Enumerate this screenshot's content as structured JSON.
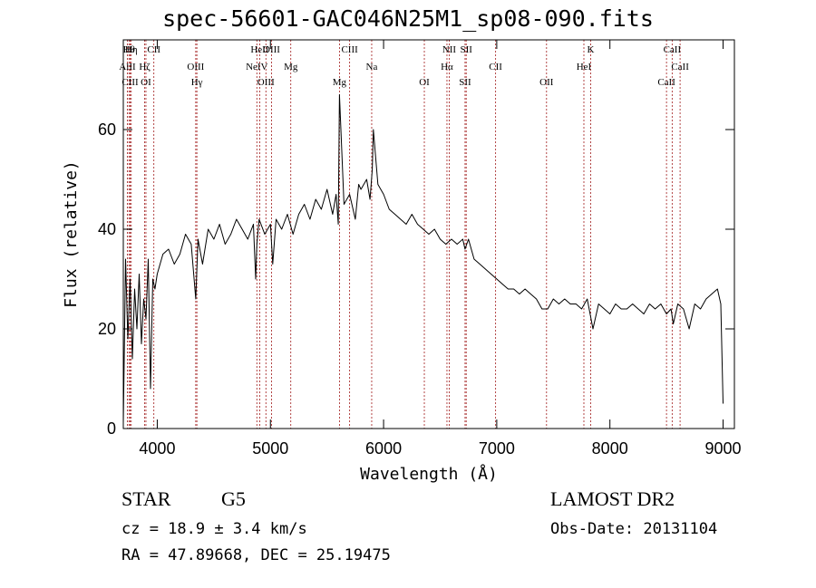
{
  "header": {
    "title": "spec-56601-GAC046N25M1_sp08-090.fits"
  },
  "footer": {
    "object_class": "STAR",
    "subclass": "G5",
    "survey": "LAMOST DR2",
    "redshift": "cz = 18.9 ± 3.4 km/s",
    "obs_date": "Obs-Date: 20131104",
    "coords": "RA =  47.89668, DEC =  25.19475"
  },
  "colors": {
    "spectrum": "#000000",
    "line_markers": "#a01818",
    "axes": "#000000"
  },
  "chart_data": {
    "type": "line",
    "title": "spec-56601-GAC046N25M1_sp08-090.fits",
    "xlabel": "Wavelength (Å)",
    "ylabel": "Flux (relative)",
    "xlim": [
      3700,
      9100
    ],
    "ylim": [
      0,
      78
    ],
    "x_ticks": [
      4000,
      5000,
      6000,
      7000,
      8000,
      9000
    ],
    "y_ticks": [
      0,
      20,
      40,
      60
    ],
    "grid": false,
    "legend": "none",
    "series": [
      {
        "x": [
          3700,
          3720,
          3740,
          3760,
          3780,
          3800,
          3820,
          3840,
          3860,
          3880,
          3900,
          3920,
          3940,
          3960,
          3980,
          4000,
          4050,
          4100,
          4150,
          4200,
          4250,
          4300,
          4340,
          4360,
          4400,
          4450,
          4500,
          4550,
          4600,
          4650,
          4700,
          4750,
          4800,
          4850,
          4870,
          4880,
          4900,
          4950,
          5000,
          5020,
          5050,
          5100,
          5150,
          5200,
          5250,
          5300,
          5350,
          5400,
          5450,
          5500,
          5550,
          5580,
          5600,
          5610,
          5650,
          5700,
          5750,
          5780,
          5800,
          5850,
          5880,
          5900,
          5910,
          5950,
          6000,
          6050,
          6100,
          6150,
          6200,
          6250,
          6300,
          6350,
          6400,
          6450,
          6500,
          6550,
          6600,
          6650,
          6700,
          6720,
          6750,
          6800,
          6850,
          6900,
          6950,
          7000,
          7050,
          7100,
          7150,
          7200,
          7250,
          7300,
          7350,
          7400,
          7450,
          7500,
          7550,
          7600,
          7650,
          7700,
          7750,
          7800,
          7850,
          7900,
          7950,
          8000,
          8050,
          8100,
          8150,
          8200,
          8250,
          8300,
          8350,
          8400,
          8450,
          8500,
          8540,
          8560,
          8600,
          8650,
          8700,
          8750,
          8800,
          8850,
          8900,
          8950,
          8980,
          9000
        ],
        "y": [
          1,
          34,
          18,
          30,
          14,
          28,
          20,
          31,
          17,
          26,
          22,
          34,
          8,
          30,
          28,
          31,
          35,
          36,
          33,
          35,
          39,
          37,
          26,
          38,
          33,
          40,
          38,
          41,
          37,
          39,
          42,
          40,
          38,
          41,
          30,
          37,
          42,
          39,
          41,
          33,
          42,
          40,
          43,
          39,
          43,
          45,
          42,
          46,
          44,
          48,
          43,
          47,
          41,
          67,
          45,
          47,
          42,
          49,
          48,
          50,
          46,
          52,
          60,
          49,
          47,
          44,
          43,
          42,
          41,
          43,
          41,
          40,
          39,
          40,
          38,
          37,
          38,
          37,
          38,
          36,
          38,
          34,
          33,
          32,
          31,
          30,
          29,
          28,
          28,
          27,
          28,
          27,
          26,
          24,
          24,
          26,
          25,
          26,
          25,
          25,
          24,
          26,
          20,
          25,
          24,
          23,
          25,
          24,
          24,
          25,
          24,
          23,
          25,
          24,
          25,
          23,
          24,
          21,
          25,
          24,
          20,
          25,
          24,
          26,
          27,
          28,
          25,
          5
        ]
      }
    ],
    "line_markers": [
      {
        "label": "Hθ",
        "wavelength": 3750
      },
      {
        "label": "AlII",
        "wavelength": 3736
      },
      {
        "label": "CIII",
        "wavelength": 3760
      },
      {
        "label": "Hη",
        "wavelength": 3770
      },
      {
        "label": "Hζ",
        "wavelength": 3889
      },
      {
        "label": "OI",
        "wavelength": 3900
      },
      {
        "label": "CII",
        "wavelength": 3970
      },
      {
        "label": "OIII",
        "wavelength": 4340
      },
      {
        "label": "Hγ",
        "wavelength": 4350
      },
      {
        "label": "HeII",
        "wavelength": 4905
      },
      {
        "label": "NeIV",
        "wavelength": 4880
      },
      {
        "label": "OIII",
        "wavelength": 4960
      },
      {
        "label": "OIII",
        "wavelength": 5010
      },
      {
        "label": "Mg",
        "wavelength": 5180
      },
      {
        "label": "Mg",
        "wavelength": 5610
      },
      {
        "label": "CIII",
        "wavelength": 5700
      },
      {
        "label": "Na",
        "wavelength": 5895
      },
      {
        "label": "OI",
        "wavelength": 6360
      },
      {
        "label": "NII",
        "wavelength": 6580
      },
      {
        "label": "Hα",
        "wavelength": 6560
      },
      {
        "label": "SII",
        "wavelength": 6720
      },
      {
        "label": "SII",
        "wavelength": 6730
      },
      {
        "label": "CII",
        "wavelength": 6990
      },
      {
        "label": "OII",
        "wavelength": 7440
      },
      {
        "label": "K",
        "wavelength": 7830
      },
      {
        "label": "HeI",
        "wavelength": 7770
      },
      {
        "label": "CaII",
        "wavelength": 8500
      },
      {
        "label": "CaII",
        "wavelength": 8550
      },
      {
        "label": "CaII",
        "wavelength": 8620
      }
    ]
  }
}
